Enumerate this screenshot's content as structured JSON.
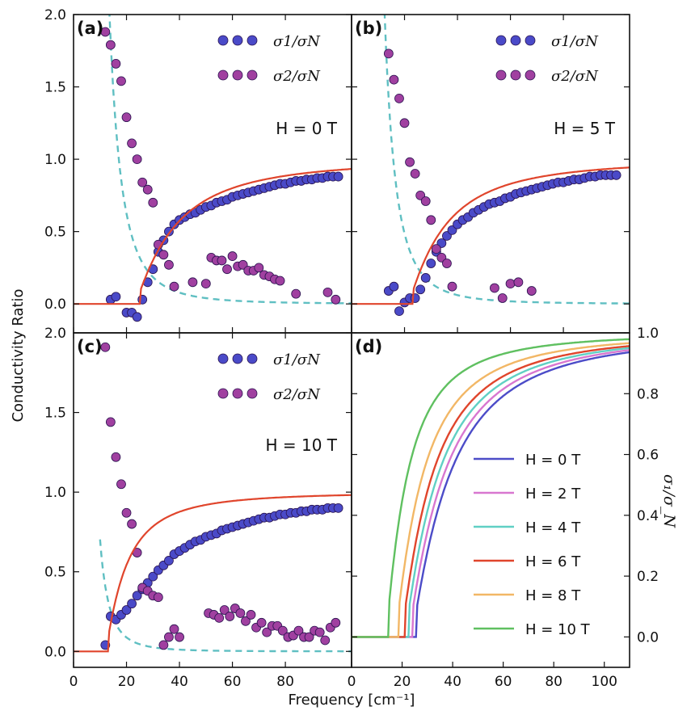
{
  "chart_data": [
    {
      "panel": "(a)",
      "type": "scatter",
      "field_label": "H = 0 T",
      "xlim": [
        0,
        105
      ],
      "ylim": [
        -0.2,
        2.0
      ],
      "yticks": [
        "0.0",
        "0.5",
        "1.0",
        "1.5",
        "2.0"
      ],
      "legend": [
        "σ1/σN",
        "σ2/σN"
      ],
      "series": [
        {
          "name": "σ1/σN",
          "kind": "points",
          "color": "#4a4ac8",
          "x": [
            14,
            16,
            20,
            22,
            24,
            26,
            28,
            30,
            32,
            34,
            36,
            38,
            40,
            42,
            44,
            46,
            48,
            50,
            52,
            54,
            56,
            58,
            60,
            62,
            64,
            66,
            68,
            70,
            72,
            74,
            76,
            78,
            80,
            82,
            84,
            86,
            88,
            90,
            92,
            94,
            96,
            98,
            100
          ],
          "y": [
            0.03,
            0.05,
            -0.06,
            -0.06,
            -0.09,
            0.03,
            0.15,
            0.24,
            0.36,
            0.44,
            0.5,
            0.55,
            0.58,
            0.6,
            0.62,
            0.63,
            0.65,
            0.67,
            0.68,
            0.7,
            0.71,
            0.72,
            0.74,
            0.75,
            0.76,
            0.77,
            0.78,
            0.79,
            0.8,
            0.81,
            0.82,
            0.83,
            0.83,
            0.84,
            0.85,
            0.85,
            0.86,
            0.86,
            0.87,
            0.87,
            0.88,
            0.88,
            0.88
          ]
        },
        {
          "name": "σ2/σN",
          "kind": "points",
          "color": "#a040a0",
          "x": [
            12,
            14,
            16,
            18,
            20,
            22,
            24,
            26,
            28,
            30,
            32,
            34,
            36,
            38,
            45,
            50,
            52,
            54,
            56,
            58,
            60,
            62,
            64,
            66,
            68,
            70,
            72,
            74,
            76,
            78,
            84,
            96,
            99
          ],
          "y": [
            1.88,
            1.79,
            1.66,
            1.54,
            1.29,
            1.11,
            1.0,
            0.84,
            0.79,
            0.7,
            0.41,
            0.34,
            0.27,
            0.12,
            0.15,
            0.14,
            0.32,
            0.3,
            0.3,
            0.24,
            0.33,
            0.26,
            0.27,
            0.23,
            0.23,
            0.25,
            0.2,
            0.19,
            0.17,
            0.16,
            0.07,
            0.08,
            0.03
          ]
        },
        {
          "name": "fit σ1",
          "kind": "fit1",
          "gap": 25,
          "color": "#e0452c"
        },
        {
          "name": "fit σ2",
          "kind": "fit2",
          "gap": 25,
          "color": "#5fbfc2"
        }
      ]
    },
    {
      "panel": "(b)",
      "type": "scatter",
      "field_label": "H = 5 T",
      "xlim": [
        0,
        105
      ],
      "ylim": [
        -0.2,
        2.0
      ],
      "yticks": [],
      "legend": [
        "σ1/σN",
        "σ2/σN"
      ],
      "series": [
        {
          "name": "σ1/σN",
          "kind": "points",
          "color": "#4a4ac8",
          "x": [
            14,
            16,
            18,
            20,
            22,
            24,
            26,
            28,
            30,
            32,
            34,
            36,
            38,
            40,
            42,
            44,
            46,
            48,
            50,
            52,
            54,
            56,
            58,
            60,
            62,
            64,
            66,
            68,
            70,
            72,
            74,
            76,
            78,
            80,
            82,
            84,
            86,
            88,
            90,
            92,
            94,
            96,
            98,
            100
          ],
          "y": [
            0.09,
            0.12,
            -0.05,
            0.01,
            0.04,
            0.04,
            0.1,
            0.18,
            0.28,
            0.36,
            0.42,
            0.47,
            0.51,
            0.55,
            0.58,
            0.6,
            0.63,
            0.65,
            0.67,
            0.69,
            0.7,
            0.71,
            0.73,
            0.74,
            0.76,
            0.77,
            0.78,
            0.79,
            0.8,
            0.81,
            0.82,
            0.83,
            0.84,
            0.84,
            0.85,
            0.86,
            0.86,
            0.87,
            0.88,
            0.88,
            0.89,
            0.89,
            0.89,
            0.89
          ]
        },
        {
          "name": "σ2/σN",
          "kind": "points",
          "color": "#a040a0",
          "x": [
            14,
            16,
            18,
            20,
            22,
            24,
            26,
            28,
            30,
            32,
            34,
            36,
            38,
            54,
            57,
            60,
            63,
            68
          ],
          "y": [
            1.73,
            1.55,
            1.42,
            1.25,
            0.98,
            0.9,
            0.75,
            0.71,
            0.58,
            0.38,
            0.32,
            0.28,
            0.12,
            0.11,
            0.04,
            0.14,
            0.15,
            0.09
          ]
        },
        {
          "name": "fit σ1",
          "kind": "fit1",
          "gap": 23,
          "color": "#e0452c"
        },
        {
          "name": "fit σ2",
          "kind": "fit2",
          "gap": 23,
          "color": "#5fbfc2"
        }
      ]
    },
    {
      "panel": "(c)",
      "type": "scatter",
      "field_label": "H = 10 T",
      "xlim": [
        0,
        105
      ],
      "ylim": [
        -0.1,
        2.0
      ],
      "yticks": [
        "0.0",
        "0.5",
        "1.0",
        "1.5",
        "2.0"
      ],
      "xticks": [
        "0",
        "20",
        "40",
        "60",
        "80"
      ],
      "legend": [
        "σ1/σN",
        "σ2/σN"
      ],
      "series": [
        {
          "name": "σ1/σN",
          "kind": "points",
          "color": "#4a4ac8",
          "x": [
            12,
            14,
            16,
            18,
            20,
            22,
            24,
            26,
            28,
            30,
            32,
            34,
            36,
            38,
            40,
            42,
            44,
            46,
            48,
            50,
            52,
            54,
            56,
            58,
            60,
            62,
            64,
            66,
            68,
            70,
            72,
            74,
            76,
            78,
            80,
            82,
            84,
            86,
            88,
            90,
            92,
            94,
            96,
            98,
            100
          ],
          "y": [
            0.04,
            0.22,
            0.2,
            0.23,
            0.26,
            0.3,
            0.35,
            0.39,
            0.43,
            0.47,
            0.51,
            0.54,
            0.57,
            0.61,
            0.63,
            0.65,
            0.67,
            0.69,
            0.7,
            0.72,
            0.73,
            0.74,
            0.76,
            0.77,
            0.78,
            0.79,
            0.8,
            0.81,
            0.82,
            0.83,
            0.84,
            0.84,
            0.85,
            0.86,
            0.86,
            0.87,
            0.87,
            0.88,
            0.88,
            0.89,
            0.89,
            0.89,
            0.9,
            0.9,
            0.9
          ]
        },
        {
          "name": "σ2/σN",
          "kind": "points",
          "color": "#a040a0",
          "x": [
            12,
            14,
            16,
            18,
            20,
            22,
            24,
            26,
            28,
            30,
            32,
            34,
            36,
            38,
            40,
            51,
            53,
            55,
            57,
            59,
            61,
            63,
            65,
            67,
            69,
            71,
            73,
            75,
            77,
            79,
            81,
            83,
            85,
            87,
            89,
            91,
            93,
            95,
            97,
            99
          ],
          "y": [
            1.91,
            1.44,
            1.22,
            1.05,
            0.87,
            0.8,
            0.62,
            0.4,
            0.38,
            0.35,
            0.34,
            0.04,
            0.09,
            0.14,
            0.09,
            0.24,
            0.23,
            0.21,
            0.26,
            0.22,
            0.27,
            0.24,
            0.19,
            0.23,
            0.15,
            0.18,
            0.12,
            0.16,
            0.16,
            0.13,
            0.09,
            0.1,
            0.13,
            0.09,
            0.09,
            0.13,
            0.12,
            0.07,
            0.15,
            0.18
          ]
        },
        {
          "name": "fit σ1",
          "kind": "fit1",
          "gap": 13,
          "color": "#e0452c"
        },
        {
          "name": "fit σ2",
          "kind": "fit2",
          "gap": 13,
          "color": "#5fbfc2"
        }
      ]
    },
    {
      "panel": "(d)",
      "type": "line",
      "xlim": [
        0,
        110
      ],
      "ylim": [
        -0.1,
        1.0
      ],
      "yticks": [
        "0.0",
        "0.2",
        "0.4",
        "0.6",
        "0.8",
        "1.0"
      ],
      "xticks": [
        "0",
        "20",
        "40",
        "60",
        "80",
        "100"
      ],
      "ylabel": "σ1/σN",
      "legend_position": "lower-right",
      "series": [
        {
          "name": "H = 0 T",
          "gap": 25.5,
          "color": "#4c4cc8"
        },
        {
          "name": "H = 2 T",
          "gap": 24,
          "color": "#d877d0"
        },
        {
          "name": "H = 4 T",
          "gap": 22.5,
          "color": "#60d0c4"
        },
        {
          "name": "H = 6 T",
          "gap": 21,
          "color": "#e0452c"
        },
        {
          "name": "H = 8 T",
          "gap": 18.5,
          "color": "#f2b766"
        },
        {
          "name": "H = 10 T",
          "gap": 14.5,
          "color": "#5fc060"
        }
      ]
    }
  ],
  "axes": {
    "xlabel": "Frequency [cm⁻¹]",
    "ylabel": "Conductivity Ratio"
  }
}
